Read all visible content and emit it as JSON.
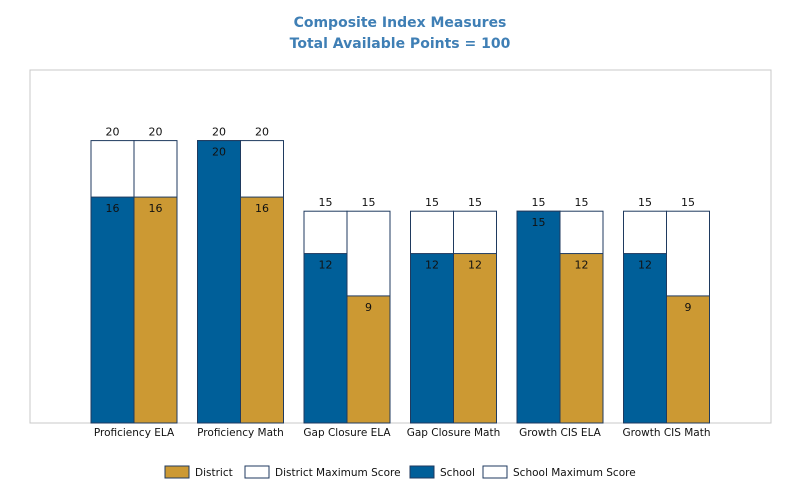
{
  "chart_data": {
    "type": "bar",
    "title": "Composite Index Measures",
    "subtitle": "Total Available Points = 100",
    "categories": [
      "Proficiency ELA",
      "Proficiency Math",
      "Gap Closure ELA",
      "Gap Closure Math",
      "Growth CIS ELA",
      "Growth CIS Math"
    ],
    "series": [
      {
        "name": "School",
        "values": [
          16,
          20,
          12,
          12,
          15,
          12
        ],
        "color": "#005f99"
      },
      {
        "name": "School Maximum Score",
        "values": [
          20,
          20,
          15,
          15,
          15,
          15
        ],
        "color": "#ffffff"
      },
      {
        "name": "District",
        "values": [
          16,
          16,
          9,
          12,
          12,
          9
        ],
        "color": "#cc9933"
      },
      {
        "name": "District Maximum Score",
        "values": [
          20,
          20,
          15,
          15,
          15,
          15
        ],
        "color": "#ffffff"
      }
    ],
    "ylim": [
      0,
      25
    ],
    "legend": [
      {
        "name": "District",
        "color": "#cc9933"
      },
      {
        "name": "District Maximum Score",
        "color": "#ffffff"
      },
      {
        "name": "School",
        "color": "#005f99"
      },
      {
        "name": "School Maximum Score",
        "color": "#ffffff"
      }
    ],
    "legend_position": "bottom",
    "grid": false
  }
}
